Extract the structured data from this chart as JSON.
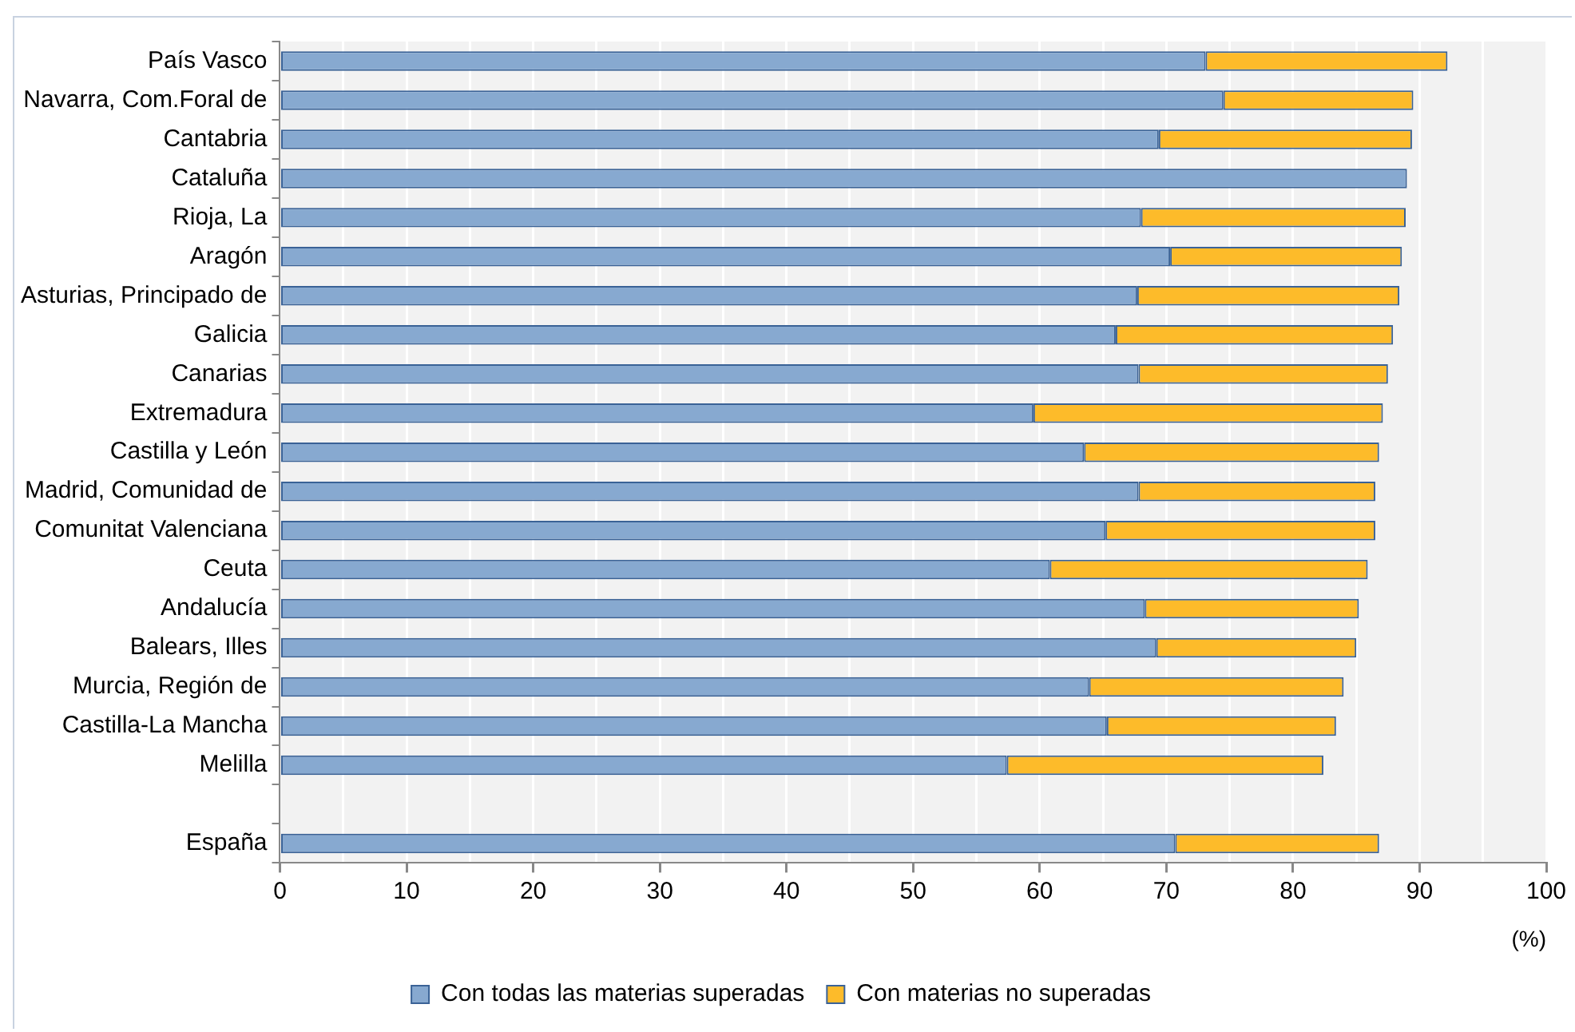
{
  "chart_data": {
    "type": "bar",
    "orientation": "horizontal",
    "stacked": true,
    "xlabel": "(%)",
    "categories": [
      "País Vasco",
      "Navarra, Com.Foral de",
      "Cantabria",
      "Cataluña",
      "Rioja, La",
      "Aragón",
      "Asturias, Principado de",
      "Galicia",
      "Canarias",
      "Extremadura",
      "Castilla y León",
      "Madrid, Comunidad de",
      "Comunitat Valenciana",
      "Ceuta",
      "Andalucía",
      "Balears, Illes",
      "Murcia, Región de",
      "Castilla-La Mancha",
      "Melilla",
      null,
      "España"
    ],
    "series": [
      {
        "name": "Con todas las materias superadas",
        "color": "#87a9d0",
        "values": [
          73.1,
          74.5,
          69.4,
          89.0,
          68.0,
          70.3,
          67.7,
          66.0,
          67.8,
          59.5,
          63.5,
          67.8,
          65.2,
          60.8,
          68.3,
          69.2,
          63.9,
          65.3,
          57.4,
          null,
          70.7
        ]
      },
      {
        "name": "Con materias no superadas",
        "color": "#fdbb2a",
        "values": [
          19.1,
          15.0,
          20.0,
          null,
          20.9,
          18.3,
          20.7,
          21.9,
          19.7,
          27.6,
          23.3,
          18.7,
          21.3,
          25.1,
          16.9,
          15.8,
          20.1,
          18.1,
          25.0,
          null,
          16.1
        ]
      }
    ],
    "xlim": [
      0,
      100
    ],
    "xticks": [
      0,
      {
        "value": 5,
        "label": null
      },
      10,
      {
        "value": 15,
        "label": null
      },
      20,
      {
        "value": 25,
        "label": null
      },
      30,
      {
        "value": 35,
        "label": null
      },
      40,
      {
        "value": 45,
        "label": null
      },
      50,
      {
        "value": 55,
        "label": null
      },
      60,
      {
        "value": 65,
        "label": null
      },
      70,
      {
        "value": 75,
        "label": null
      },
      80,
      {
        "value": 85,
        "label": null
      },
      90,
      {
        "value": 95,
        "label": null
      },
      100
    ],
    "grid": "x",
    "legend": "bottom"
  }
}
